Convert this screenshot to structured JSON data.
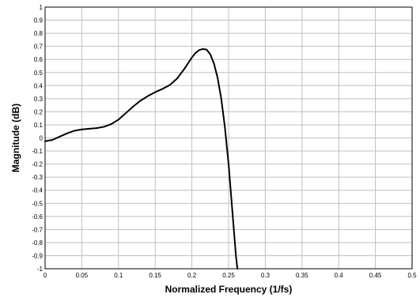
{
  "chart_data": {
    "type": "line",
    "title": "",
    "xlabel": "Normalized Frequency (1/fs)",
    "ylabel": "Magnitude (dB)",
    "xlim": [
      0,
      0.5
    ],
    "ylim": [
      -1,
      1
    ],
    "grid": true,
    "x_ticks": [
      "0",
      "0.05",
      "0.1",
      "0.15",
      "0.2",
      "0.25",
      "0.3",
      "0.35",
      "0.4",
      "0.45",
      "0.5"
    ],
    "y_ticks": [
      "1",
      "0.9",
      "0.8",
      "0.7",
      "0.6",
      "0.5",
      "0.4",
      "0.3",
      "0.2",
      "0.1",
      "0",
      "-0.1",
      "-0.2",
      "-0.3",
      "-0.4",
      "-0.5",
      "-0.6",
      "-0.7",
      "-0.8",
      "-0.9",
      "-1"
    ],
    "series": [
      {
        "color": "#000000",
        "x": [
          0,
          0.01,
          0.02,
          0.03,
          0.04,
          0.05,
          0.06,
          0.07,
          0.08,
          0.09,
          0.1,
          0.11,
          0.12,
          0.13,
          0.14,
          0.15,
          0.16,
          0.17,
          0.18,
          0.19,
          0.2,
          0.205,
          0.21,
          0.215,
          0.22,
          0.225,
          0.23,
          0.235,
          0.24,
          0.245,
          0.25,
          0.255,
          0.26,
          0.262
        ],
        "y": [
          -0.025,
          -0.015,
          0.01,
          0.035,
          0.055,
          0.065,
          0.07,
          0.075,
          0.085,
          0.105,
          0.14,
          0.19,
          0.24,
          0.285,
          0.32,
          0.35,
          0.375,
          0.405,
          0.455,
          0.53,
          0.615,
          0.65,
          0.672,
          0.68,
          0.675,
          0.64,
          0.57,
          0.46,
          0.3,
          0.08,
          -0.2,
          -0.55,
          -0.9,
          -1.0
        ]
      }
    ]
  }
}
